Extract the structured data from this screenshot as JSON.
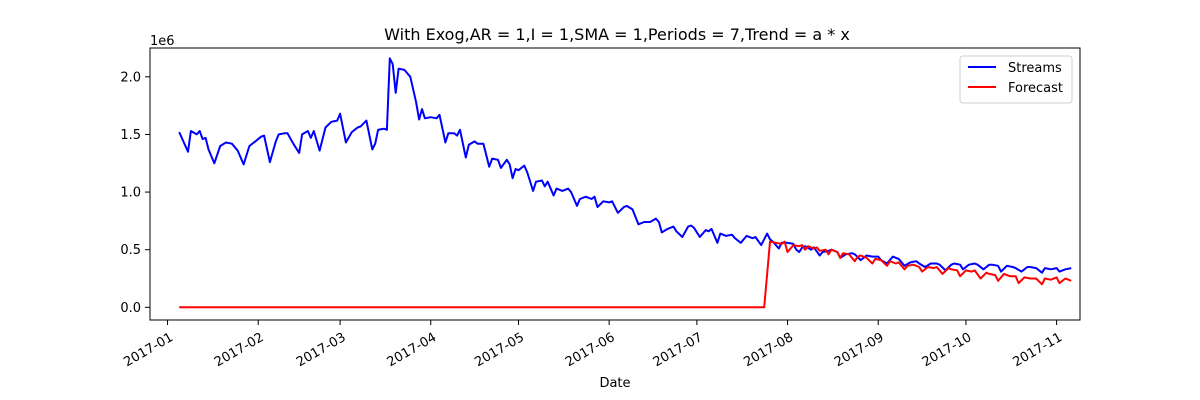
{
  "chart_data": {
    "type": "line",
    "title": "With Exog,AR = 1,I = 1,SMA = 1,Periods = 7,Trend = a * x",
    "xlabel": "Date",
    "ylabel": "",
    "y_offset_text": "1e6",
    "y_scale": 1000000,
    "xlim": [
      "2016-12-26",
      "2017-11-09"
    ],
    "ylim": [
      -110000,
      2250000
    ],
    "x_ticks": [
      "2017-01-01",
      "2017-02-01",
      "2017-03-01",
      "2017-04-01",
      "2017-05-01",
      "2017-06-01",
      "2017-07-01",
      "2017-08-01",
      "2017-09-01",
      "2017-10-01",
      "2017-11-01"
    ],
    "x_tick_labels": [
      "2017-01",
      "2017-02",
      "2017-03",
      "2017-04",
      "2017-05",
      "2017-06",
      "2017-07",
      "2017-08",
      "2017-09",
      "2017-10",
      "2017-11"
    ],
    "y_ticks": [
      0,
      500000,
      1000000,
      1500000,
      2000000
    ],
    "y_tick_labels": [
      "0.0",
      "0.5",
      "1.0",
      "1.5",
      "2.0"
    ],
    "legend_position": "top-right",
    "grid": false,
    "series": [
      {
        "name": "Streams",
        "color": "#0000ff",
        "points": [
          [
            "2017-01-05",
            1520000
          ],
          [
            "2017-01-08",
            1350000
          ],
          [
            "2017-01-09",
            1530000
          ],
          [
            "2017-01-11",
            1500000
          ],
          [
            "2017-01-12",
            1530000
          ],
          [
            "2017-01-13",
            1460000
          ],
          [
            "2017-01-14",
            1470000
          ],
          [
            "2017-01-15",
            1370000
          ],
          [
            "2017-01-17",
            1250000
          ],
          [
            "2017-01-19",
            1400000
          ],
          [
            "2017-01-21",
            1430000
          ],
          [
            "2017-01-23",
            1420000
          ],
          [
            "2017-01-25",
            1360000
          ],
          [
            "2017-01-27",
            1240000
          ],
          [
            "2017-01-29",
            1400000
          ],
          [
            "2017-01-31",
            1440000
          ],
          [
            "2017-02-02",
            1480000
          ],
          [
            "2017-02-03",
            1490000
          ],
          [
            "2017-02-05",
            1260000
          ],
          [
            "2017-02-07",
            1440000
          ],
          [
            "2017-02-08",
            1500000
          ],
          [
            "2017-02-10",
            1510000
          ],
          [
            "2017-02-11",
            1510000
          ],
          [
            "2017-02-13",
            1420000
          ],
          [
            "2017-02-15",
            1340000
          ],
          [
            "2017-02-16",
            1500000
          ],
          [
            "2017-02-18",
            1530000
          ],
          [
            "2017-02-19",
            1470000
          ],
          [
            "2017-02-20",
            1530000
          ],
          [
            "2017-02-22",
            1360000
          ],
          [
            "2017-02-24",
            1560000
          ],
          [
            "2017-02-26",
            1610000
          ],
          [
            "2017-02-28",
            1620000
          ],
          [
            "2017-03-01",
            1680000
          ],
          [
            "2017-03-03",
            1430000
          ],
          [
            "2017-03-05",
            1520000
          ],
          [
            "2017-03-07",
            1560000
          ],
          [
            "2017-03-08",
            1570000
          ],
          [
            "2017-03-10",
            1620000
          ],
          [
            "2017-03-12",
            1370000
          ],
          [
            "2017-03-13",
            1420000
          ],
          [
            "2017-03-14",
            1540000
          ],
          [
            "2017-03-16",
            1550000
          ],
          [
            "2017-03-17",
            1540000
          ],
          [
            "2017-03-18",
            2160000
          ],
          [
            "2017-03-19",
            2110000
          ],
          [
            "2017-03-20",
            1860000
          ],
          [
            "2017-03-21",
            2070000
          ],
          [
            "2017-03-23",
            2060000
          ],
          [
            "2017-03-25",
            2000000
          ],
          [
            "2017-03-27",
            1780000
          ],
          [
            "2017-03-28",
            1630000
          ],
          [
            "2017-03-29",
            1720000
          ],
          [
            "2017-03-30",
            1640000
          ],
          [
            "2017-04-01",
            1650000
          ],
          [
            "2017-04-03",
            1640000
          ],
          [
            "2017-04-04",
            1670000
          ],
          [
            "2017-04-06",
            1430000
          ],
          [
            "2017-04-07",
            1510000
          ],
          [
            "2017-04-09",
            1510000
          ],
          [
            "2017-04-10",
            1490000
          ],
          [
            "2017-04-11",
            1540000
          ],
          [
            "2017-04-13",
            1300000
          ],
          [
            "2017-04-14",
            1410000
          ],
          [
            "2017-04-16",
            1440000
          ],
          [
            "2017-04-17",
            1420000
          ],
          [
            "2017-04-19",
            1420000
          ],
          [
            "2017-04-21",
            1220000
          ],
          [
            "2017-04-22",
            1290000
          ],
          [
            "2017-04-24",
            1280000
          ],
          [
            "2017-04-25",
            1210000
          ],
          [
            "2017-04-27",
            1280000
          ],
          [
            "2017-04-28",
            1240000
          ],
          [
            "2017-04-29",
            1120000
          ],
          [
            "2017-04-30",
            1200000
          ],
          [
            "2017-05-01",
            1190000
          ],
          [
            "2017-05-03",
            1230000
          ],
          [
            "2017-05-04",
            1170000
          ],
          [
            "2017-05-06",
            1010000
          ],
          [
            "2017-05-07",
            1090000
          ],
          [
            "2017-05-09",
            1100000
          ],
          [
            "2017-05-10",
            1050000
          ],
          [
            "2017-05-11",
            1090000
          ],
          [
            "2017-05-13",
            970000
          ],
          [
            "2017-05-14",
            1030000
          ],
          [
            "2017-05-16",
            1010000
          ],
          [
            "2017-05-18",
            1030000
          ],
          [
            "2017-05-19",
            1000000
          ],
          [
            "2017-05-21",
            880000
          ],
          [
            "2017-05-22",
            940000
          ],
          [
            "2017-05-24",
            960000
          ],
          [
            "2017-05-26",
            940000
          ],
          [
            "2017-05-27",
            960000
          ],
          [
            "2017-05-28",
            870000
          ],
          [
            "2017-05-30",
            920000
          ],
          [
            "2017-06-01",
            910000
          ],
          [
            "2017-06-02",
            920000
          ],
          [
            "2017-06-04",
            820000
          ],
          [
            "2017-06-06",
            870000
          ],
          [
            "2017-06-07",
            880000
          ],
          [
            "2017-06-09",
            850000
          ],
          [
            "2017-06-11",
            720000
          ],
          [
            "2017-06-13",
            740000
          ],
          [
            "2017-06-15",
            740000
          ],
          [
            "2017-06-17",
            770000
          ],
          [
            "2017-06-18",
            740000
          ],
          [
            "2017-06-19",
            650000
          ],
          [
            "2017-06-21",
            680000
          ],
          [
            "2017-06-23",
            700000
          ],
          [
            "2017-06-24",
            660000
          ],
          [
            "2017-06-26",
            610000
          ],
          [
            "2017-06-28",
            700000
          ],
          [
            "2017-06-29",
            710000
          ],
          [
            "2017-06-30",
            690000
          ],
          [
            "2017-07-02",
            610000
          ],
          [
            "2017-07-04",
            670000
          ],
          [
            "2017-07-05",
            660000
          ],
          [
            "2017-07-06",
            680000
          ],
          [
            "2017-07-08",
            560000
          ],
          [
            "2017-07-09",
            640000
          ],
          [
            "2017-07-11",
            620000
          ],
          [
            "2017-07-13",
            630000
          ],
          [
            "2017-07-14",
            600000
          ],
          [
            "2017-07-16",
            560000
          ],
          [
            "2017-07-18",
            620000
          ],
          [
            "2017-07-20",
            600000
          ],
          [
            "2017-07-21",
            610000
          ],
          [
            "2017-07-23",
            540000
          ],
          [
            "2017-07-25",
            640000
          ],
          [
            "2017-07-26",
            590000
          ],
          [
            "2017-07-27",
            570000
          ],
          [
            "2017-07-29",
            510000
          ],
          [
            "2017-07-30",
            560000
          ],
          [
            "2017-08-01",
            560000
          ],
          [
            "2017-08-03",
            550000
          ],
          [
            "2017-08-04",
            500000
          ],
          [
            "2017-08-05",
            480000
          ],
          [
            "2017-08-06",
            520000
          ],
          [
            "2017-08-07",
            530000
          ],
          [
            "2017-08-09",
            500000
          ],
          [
            "2017-08-10",
            520000
          ],
          [
            "2017-08-12",
            450000
          ],
          [
            "2017-08-13",
            480000
          ],
          [
            "2017-08-15",
            490000
          ],
          [
            "2017-08-16",
            500000
          ],
          [
            "2017-08-18",
            480000
          ],
          [
            "2017-08-19",
            430000
          ],
          [
            "2017-08-21",
            460000
          ],
          [
            "2017-08-23",
            470000
          ],
          [
            "2017-08-24",
            460000
          ],
          [
            "2017-08-26",
            410000
          ],
          [
            "2017-08-28",
            450000
          ],
          [
            "2017-08-30",
            440000
          ],
          [
            "2017-09-01",
            440000
          ],
          [
            "2017-09-02",
            410000
          ],
          [
            "2017-09-04",
            380000
          ],
          [
            "2017-09-06",
            440000
          ],
          [
            "2017-09-07",
            430000
          ],
          [
            "2017-09-08",
            420000
          ],
          [
            "2017-09-10",
            360000
          ],
          [
            "2017-09-12",
            390000
          ],
          [
            "2017-09-14",
            400000
          ],
          [
            "2017-09-15",
            380000
          ],
          [
            "2017-09-17",
            350000
          ],
          [
            "2017-09-19",
            380000
          ],
          [
            "2017-09-21",
            380000
          ],
          [
            "2017-09-22",
            370000
          ],
          [
            "2017-09-24",
            320000
          ],
          [
            "2017-09-26",
            370000
          ],
          [
            "2017-09-27",
            380000
          ],
          [
            "2017-09-29",
            370000
          ],
          [
            "2017-09-30",
            330000
          ],
          [
            "2017-10-02",
            370000
          ],
          [
            "2017-10-04",
            380000
          ],
          [
            "2017-10-05",
            370000
          ],
          [
            "2017-10-07",
            330000
          ],
          [
            "2017-10-09",
            370000
          ],
          [
            "2017-10-10",
            370000
          ],
          [
            "2017-10-12",
            360000
          ],
          [
            "2017-10-13",
            310000
          ],
          [
            "2017-10-15",
            360000
          ],
          [
            "2017-10-17",
            350000
          ],
          [
            "2017-10-18",
            340000
          ],
          [
            "2017-10-20",
            310000
          ],
          [
            "2017-10-22",
            350000
          ],
          [
            "2017-10-23",
            350000
          ],
          [
            "2017-10-25",
            340000
          ],
          [
            "2017-10-27",
            300000
          ],
          [
            "2017-10-28",
            340000
          ],
          [
            "2017-10-30",
            330000
          ],
          [
            "2017-11-01",
            340000
          ],
          [
            "2017-11-02",
            310000
          ],
          [
            "2017-11-04",
            330000
          ],
          [
            "2017-11-06",
            340000
          ]
        ]
      },
      {
        "name": "Forecast",
        "color": "#ff0000",
        "points": [
          [
            "2017-01-05",
            0
          ],
          [
            "2017-07-24",
            0
          ],
          [
            "2017-07-26",
            570000
          ],
          [
            "2017-07-28",
            560000
          ],
          [
            "2017-07-30",
            550000
          ],
          [
            "2017-07-31",
            570000
          ],
          [
            "2017-08-01",
            480000
          ],
          [
            "2017-08-03",
            540000
          ],
          [
            "2017-08-05",
            530000
          ],
          [
            "2017-08-06",
            540000
          ],
          [
            "2017-08-07",
            500000
          ],
          [
            "2017-08-08",
            530000
          ],
          [
            "2017-08-10",
            510000
          ],
          [
            "2017-08-11",
            520000
          ],
          [
            "2017-08-12",
            490000
          ],
          [
            "2017-08-14",
            500000
          ],
          [
            "2017-08-15",
            460000
          ],
          [
            "2017-08-16",
            500000
          ],
          [
            "2017-08-18",
            480000
          ],
          [
            "2017-08-19",
            430000
          ],
          [
            "2017-08-20",
            470000
          ],
          [
            "2017-08-22",
            460000
          ],
          [
            "2017-08-24",
            400000
          ],
          [
            "2017-08-25",
            440000
          ],
          [
            "2017-08-26",
            450000
          ],
          [
            "2017-08-28",
            430000
          ],
          [
            "2017-08-30",
            380000
          ],
          [
            "2017-08-31",
            420000
          ],
          [
            "2017-09-02",
            410000
          ],
          [
            "2017-09-04",
            360000
          ],
          [
            "2017-09-05",
            400000
          ],
          [
            "2017-09-07",
            380000
          ],
          [
            "2017-09-08",
            390000
          ],
          [
            "2017-09-10",
            330000
          ],
          [
            "2017-09-11",
            360000
          ],
          [
            "2017-09-13",
            370000
          ],
          [
            "2017-09-15",
            350000
          ],
          [
            "2017-09-16",
            310000
          ],
          [
            "2017-09-18",
            350000
          ],
          [
            "2017-09-20",
            340000
          ],
          [
            "2017-09-21",
            350000
          ],
          [
            "2017-09-23",
            290000
          ],
          [
            "2017-09-25",
            340000
          ],
          [
            "2017-09-26",
            330000
          ],
          [
            "2017-09-28",
            320000
          ],
          [
            "2017-09-29",
            270000
          ],
          [
            "2017-10-01",
            320000
          ],
          [
            "2017-10-03",
            310000
          ],
          [
            "2017-10-04",
            320000
          ],
          [
            "2017-10-06",
            250000
          ],
          [
            "2017-10-08",
            300000
          ],
          [
            "2017-10-09",
            290000
          ],
          [
            "2017-10-11",
            280000
          ],
          [
            "2017-10-12",
            230000
          ],
          [
            "2017-10-14",
            290000
          ],
          [
            "2017-10-16",
            270000
          ],
          [
            "2017-10-18",
            270000
          ],
          [
            "2017-10-19",
            210000
          ],
          [
            "2017-10-21",
            260000
          ],
          [
            "2017-10-23",
            250000
          ],
          [
            "2017-10-25",
            250000
          ],
          [
            "2017-10-27",
            200000
          ],
          [
            "2017-10-28",
            250000
          ],
          [
            "2017-10-30",
            240000
          ],
          [
            "2017-11-01",
            260000
          ],
          [
            "2017-11-02",
            210000
          ],
          [
            "2017-11-04",
            250000
          ],
          [
            "2017-11-06",
            230000
          ]
        ]
      }
    ]
  }
}
